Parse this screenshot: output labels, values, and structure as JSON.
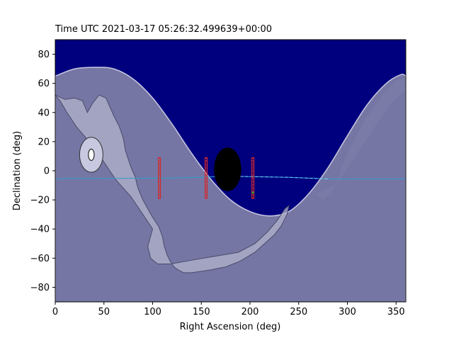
{
  "chart_data": {
    "type": "scatter",
    "title": "Time UTC 2021-03-17 05:26:32.499639+00:00",
    "xlabel": "Right Ascension (deg)",
    "ylabel": "Declination (deg)",
    "xlim": [
      0,
      360
    ],
    "ylim": [
      -90,
      90
    ],
    "x_ticks": [
      0,
      50,
      100,
      150,
      200,
      250,
      300,
      350
    ],
    "y_ticks": [
      -80,
      -60,
      -40,
      -20,
      0,
      20,
      40,
      60,
      80
    ],
    "grid": false,
    "colors": {
      "background": "#00007f",
      "night_region": "#8080a8",
      "night_edge": "#c8c8e0",
      "galactic_plane": "#b3b3cc",
      "galactic_edge": "#4a4a6a",
      "milky_way_band": "#5050b0",
      "moon": "#000000",
      "sun_outer": "#c8c8e0",
      "sun_inner": "#ffffff",
      "ecliptic": "#2ca0c8",
      "fields": "#d62728",
      "field_marker": "#2ca02c"
    },
    "night_boundary": {
      "ra": [
        0,
        20,
        40,
        60,
        80,
        100,
        120,
        140,
        160,
        180,
        200,
        220,
        240,
        260,
        280,
        300,
        320,
        340,
        355,
        360
      ],
      "dec": [
        65,
        70,
        71,
        70,
        63,
        50,
        32,
        12,
        -6,
        -20,
        -28,
        -31,
        -28,
        -16,
        2,
        24,
        45,
        60,
        66,
        65
      ]
    },
    "ecliptic": {
      "ra": [
        0,
        60,
        120,
        180,
        200,
        240,
        280,
        320,
        360
      ],
      "dec": [
        -5.5,
        -5.2,
        -5.0,
        -3.8,
        -4.0,
        -4.5,
        -5.6,
        -5.5,
        -5.5
      ]
    },
    "moon": {
      "ra": 177,
      "dec": 1,
      "radius_ra": 14,
      "radius_dec": 15
    },
    "sun": {
      "ra": 37,
      "dec": 11,
      "radius_ra": 12,
      "radius_dec": 12,
      "core_radius_ra": 3,
      "core_radius_dec": 3
    },
    "fields": [
      {
        "ra": 107,
        "dec_min": -19,
        "dec_max": 9
      },
      {
        "ra": 155,
        "dec_min": -19,
        "dec_max": 9
      },
      {
        "ra": 203,
        "dec_min": -19,
        "dec_max": 9
      }
    ],
    "field_marker": {
      "ra": 203,
      "dec": -15
    }
  }
}
